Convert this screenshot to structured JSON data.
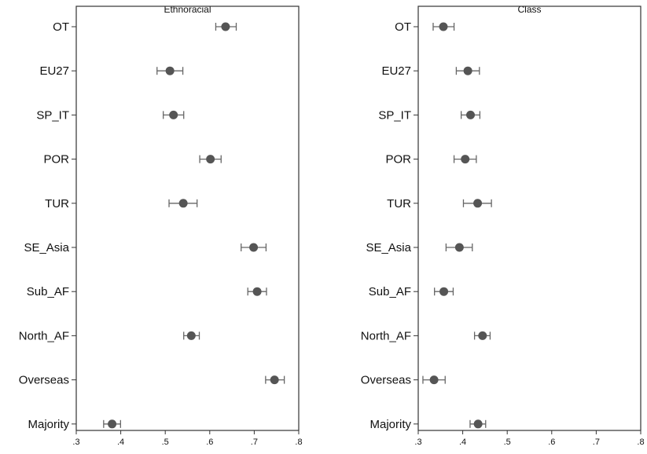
{
  "chart_data": [
    {
      "type": "scatter",
      "title": "Ethnoracial",
      "categories": [
        "OT",
        "EU27",
        "SP_IT",
        "POR",
        "TUR",
        "SE_Asia",
        "Sub_AF",
        "North_AF",
        "Overseas",
        "Majority"
      ],
      "values": [
        0.632,
        0.507,
        0.515,
        0.598,
        0.537,
        0.695,
        0.703,
        0.555,
        0.742,
        0.377
      ],
      "ci_low": [
        0.61,
        0.478,
        0.492,
        0.574,
        0.505,
        0.667,
        0.682,
        0.538,
        0.722,
        0.358
      ],
      "ci_high": [
        0.656,
        0.536,
        0.538,
        0.622,
        0.568,
        0.723,
        0.724,
        0.573,
        0.764,
        0.396
      ],
      "xticks": [
        ".3",
        ".4",
        ".5",
        ".6",
        ".7",
        ".8"
      ],
      "xlim": [
        0.3,
        0.8
      ],
      "orientation": "horizontal"
    },
    {
      "type": "scatter",
      "title": "Class",
      "categories": [
        "OT",
        "EU27",
        "SP_IT",
        "POR",
        "TUR",
        "SE_Asia",
        "Sub_AF",
        "North_AF",
        "Overseas",
        "Majority"
      ],
      "values": [
        0.353,
        0.408,
        0.414,
        0.402,
        0.43,
        0.389,
        0.354,
        0.441,
        0.332,
        0.431
      ],
      "ci_low": [
        0.33,
        0.382,
        0.393,
        0.377,
        0.398,
        0.359,
        0.333,
        0.423,
        0.307,
        0.413
      ],
      "ci_high": [
        0.377,
        0.434,
        0.435,
        0.427,
        0.461,
        0.418,
        0.375,
        0.458,
        0.357,
        0.448
      ],
      "xticks": [
        ".3",
        ".4",
        ".5",
        ".6",
        ".7",
        ".8"
      ],
      "xlim": [
        0.3,
        0.8
      ],
      "orientation": "horizontal"
    }
  ],
  "colors": {
    "marker": "#555555",
    "errorbar": "#666666",
    "axis": "#333333",
    "text": "#111111"
  }
}
